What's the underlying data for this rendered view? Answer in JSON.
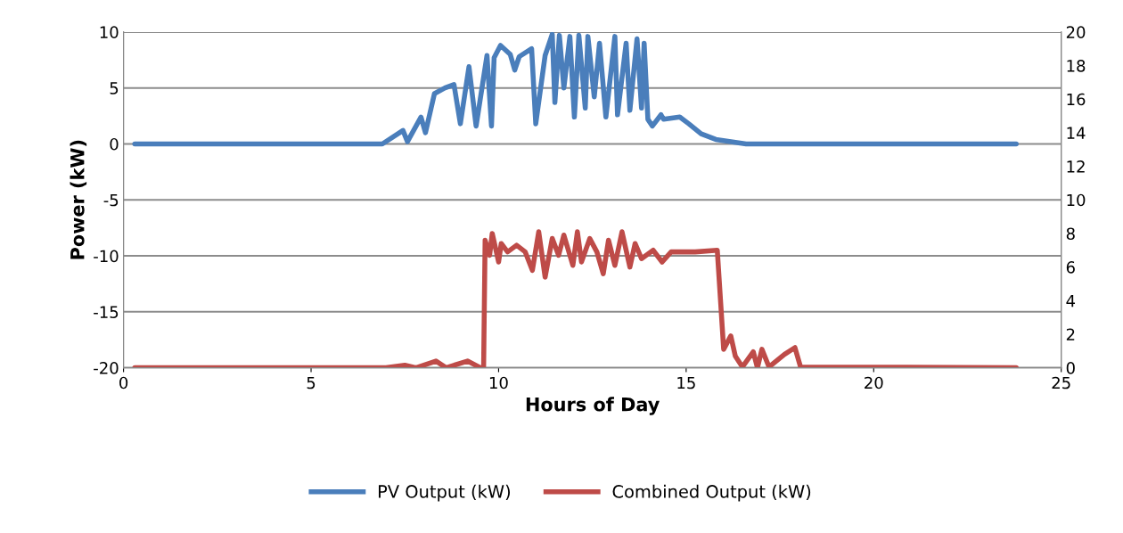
{
  "chart_data": {
    "type": "line",
    "xlabel": "Hours of Day",
    "ylabel": "Power (kW)",
    "xlim": [
      0,
      25
    ],
    "xticks": [
      0,
      5,
      10,
      15,
      20,
      25
    ],
    "ylim": [
      -20,
      10
    ],
    "yticks": [
      -20,
      -15,
      -10,
      -5,
      0,
      5,
      10
    ],
    "y2lim": [
      0,
      20
    ],
    "y2ticks": [
      0,
      2,
      4,
      6,
      8,
      10,
      12,
      14,
      16,
      18,
      20
    ],
    "grid": "y",
    "legend": "bottom",
    "marker": "none",
    "line_style": "solid",
    "series": [
      {
        "name": "PV Output (kW)",
        "color": "#4a7ebb",
        "axis": "y",
        "x": [
          0.3,
          6.9,
          7.45,
          7.57,
          7.93,
          8.05,
          8.29,
          8.57,
          8.81,
          8.98,
          9.21,
          9.4,
          9.69,
          9.81,
          9.88,
          10.05,
          10.31,
          10.43,
          10.55,
          10.88,
          10.99,
          11.24,
          11.43,
          11.5,
          11.62,
          11.74,
          11.9,
          12.02,
          12.14,
          12.31,
          12.38,
          12.55,
          12.69,
          12.86,
          13.1,
          13.17,
          13.4,
          13.5,
          13.69,
          13.81,
          13.88,
          13.98,
          14.1,
          14.33,
          14.4,
          14.83,
          15.07,
          15.4,
          15.79,
          16.6,
          23.8
        ],
        "values": [
          0,
          0,
          1.2,
          0.2,
          2.4,
          1.0,
          4.5,
          5.0,
          5.3,
          1.8,
          6.9,
          1.6,
          7.9,
          1.6,
          7.7,
          8.8,
          8.0,
          6.6,
          7.8,
          8.5,
          1.8,
          7.9,
          9.8,
          3.7,
          9.7,
          5.0,
          9.6,
          2.4,
          9.7,
          3.2,
          9.6,
          4.2,
          9.0,
          2.4,
          9.6,
          2.6,
          9.0,
          3.0,
          9.4,
          3.2,
          9.0,
          2.2,
          1.6,
          2.6,
          2.2,
          2.4,
          1.8,
          0.9,
          0.4,
          0,
          0
        ]
      },
      {
        "name": "Combined Output (kW)",
        "color": "#be4b48",
        "axis": "y2",
        "x": [
          0.3,
          7.0,
          7.5,
          7.8,
          8.33,
          8.6,
          9.17,
          9.52,
          9.6,
          9.64,
          9.76,
          9.83,
          10.0,
          10.07,
          10.24,
          10.48,
          10.71,
          10.9,
          11.07,
          11.24,
          11.43,
          11.6,
          11.74,
          11.98,
          12.1,
          12.21,
          12.43,
          12.62,
          12.79,
          12.93,
          13.1,
          13.29,
          13.5,
          13.64,
          13.81,
          14.12,
          14.36,
          14.6,
          15.24,
          15.83,
          16.0,
          16.19,
          16.31,
          16.5,
          16.79,
          16.9,
          17.02,
          17.21,
          17.62,
          17.9,
          18.05,
          23.8
        ],
        "values": [
          0,
          0,
          0.15,
          0,
          0.4,
          0,
          0.4,
          0,
          0,
          7.6,
          6.7,
          8.0,
          6.3,
          7.4,
          6.9,
          7.3,
          6.9,
          5.8,
          8.1,
          5.4,
          7.7,
          6.7,
          7.9,
          6.1,
          8.1,
          6.3,
          7.7,
          6.9,
          5.6,
          7.6,
          6.1,
          8.1,
          6.0,
          7.4,
          6.5,
          7.0,
          6.3,
          6.9,
          6.9,
          7.0,
          1.1,
          1.9,
          0.7,
          0.05,
          0.95,
          0,
          1.1,
          0.05,
          0.8,
          1.2,
          0.05,
          0
        ]
      }
    ]
  }
}
